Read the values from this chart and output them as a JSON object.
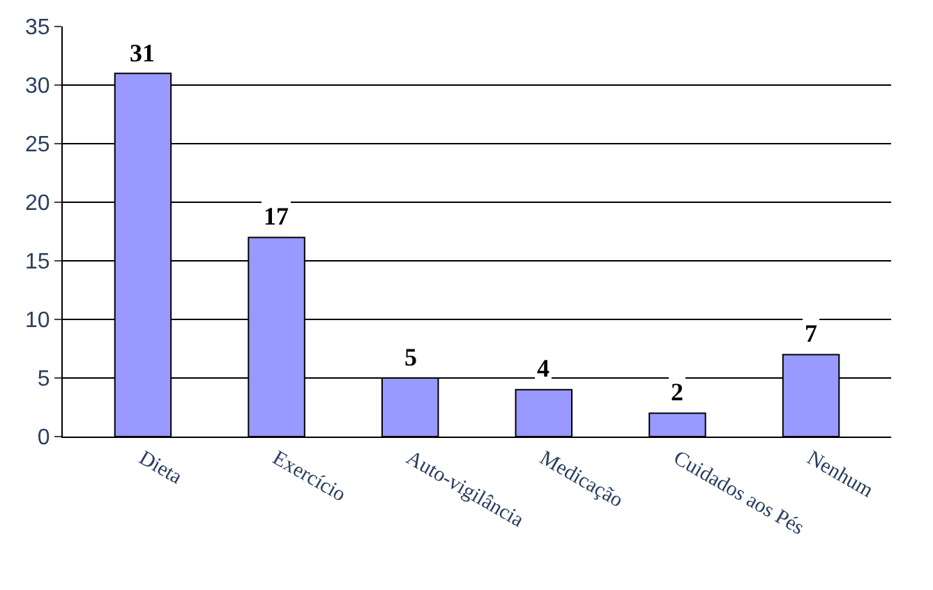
{
  "chart_data": {
    "type": "bar",
    "categories": [
      "Dieta",
      "Exercício",
      "Auto-vigilância",
      "Medicação",
      "Cuidados aos Pés",
      "Nenhum"
    ],
    "values": [
      31,
      17,
      5,
      4,
      2,
      7
    ],
    "color": "#9999ff",
    "ylim": [
      0,
      35
    ],
    "yticks": [
      0,
      5,
      10,
      15,
      20,
      25,
      30,
      35
    ],
    "grid": "y",
    "data_labels": true
  }
}
